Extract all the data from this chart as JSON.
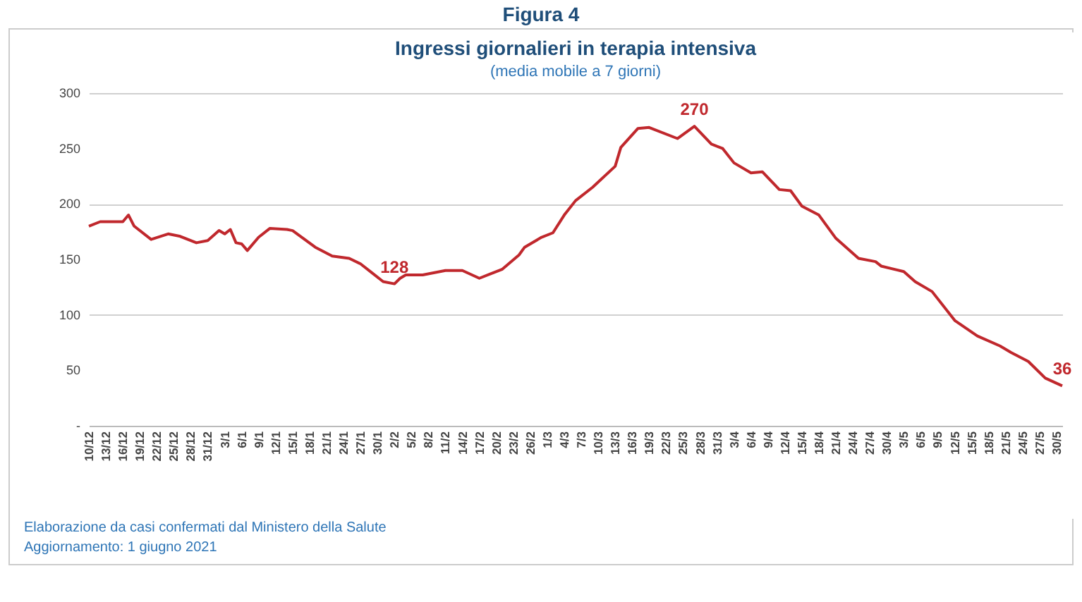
{
  "chart_data": {
    "type": "line",
    "title": "Ingressi giornalieri in terapia intensiva",
    "subtitle": "(media mobile a 7 giorni)",
    "annotations": [
      "Figura 4",
      "Elaborazione da casi confermati dal Ministero della Salute",
      "Aggiornamento: 1 giugno 2021"
    ],
    "x": [
      "2020-12-10",
      "2020-12-12",
      "2020-12-16",
      "2020-12-17",
      "2020-12-18",
      "2020-12-21",
      "2020-12-24",
      "2020-12-26",
      "2020-12-29",
      "2020-12-31",
      "2021-01-02",
      "2021-01-03",
      "2021-01-04",
      "2021-01-05",
      "2021-01-06",
      "2021-01-07",
      "2021-01-09",
      "2021-01-11",
      "2021-01-14",
      "2021-01-15",
      "2021-01-19",
      "2021-01-22",
      "2021-01-25",
      "2021-01-27",
      "2021-01-29",
      "2021-01-31",
      "2021-02-02",
      "2021-02-03",
      "2021-02-04",
      "2021-02-07",
      "2021-02-11",
      "2021-02-14",
      "2021-02-17",
      "2021-02-19",
      "2021-02-21",
      "2021-02-24",
      "2021-02-25",
      "2021-02-28",
      "2021-03-02",
      "2021-03-04",
      "2021-03-06",
      "2021-03-09",
      "2021-03-13",
      "2021-03-14",
      "2021-03-17",
      "2021-03-19",
      "2021-03-24",
      "2021-03-27",
      "2021-03-30",
      "2021-04-01",
      "2021-04-03",
      "2021-04-06",
      "2021-04-08",
      "2021-04-11",
      "2021-04-13",
      "2021-04-15",
      "2021-04-18",
      "2021-04-21",
      "2021-04-25",
      "2021-04-28",
      "2021-04-29",
      "2021-05-03",
      "2021-05-05",
      "2021-05-08",
      "2021-05-12",
      "2021-05-16",
      "2021-05-20",
      "2021-05-22",
      "2021-05-25",
      "2021-05-28",
      "2021-05-31"
    ],
    "series": [
      {
        "color": "#c0282d",
        "values": [
          180,
          184,
          184,
          190,
          180,
          168,
          173,
          171,
          165,
          167,
          176,
          173,
          177,
          165,
          164,
          158,
          170,
          178,
          177,
          176,
          161,
          153,
          151,
          146,
          138,
          130,
          128,
          133,
          136,
          136,
          140,
          140,
          133,
          137,
          141,
          154,
          161,
          170,
          174,
          190,
          203,
          215,
          234,
          251,
          268,
          269,
          259,
          270,
          254,
          250,
          237,
          228,
          229,
          213,
          212,
          198,
          190,
          169,
          151,
          148,
          144,
          139,
          130,
          121,
          95,
          81,
          72,
          66,
          58,
          43,
          36
        ],
        "value_labels": [
          null,
          null,
          null,
          null,
          null,
          null,
          null,
          null,
          null,
          null,
          null,
          null,
          null,
          null,
          null,
          null,
          null,
          null,
          null,
          null,
          null,
          null,
          null,
          null,
          null,
          null,
          "128",
          null,
          null,
          null,
          null,
          null,
          null,
          null,
          null,
          null,
          null,
          null,
          null,
          null,
          null,
          null,
          null,
          null,
          null,
          null,
          null,
          "270",
          null,
          null,
          null,
          null,
          null,
          null,
          null,
          null,
          null,
          null,
          null,
          null,
          null,
          null,
          null,
          null,
          null,
          null,
          null,
          null,
          null,
          null,
          "36"
        ]
      }
    ],
    "xlim": [
      "2020-12-10",
      "2021-05-31"
    ],
    "xticks": [
      {
        "value": "2020-12-10",
        "label": "10/12"
      },
      {
        "value": "2020-12-13",
        "label": "13/12"
      },
      {
        "value": "2020-12-16",
        "label": "16/12"
      },
      {
        "value": "2020-12-19",
        "label": "19/12"
      },
      {
        "value": "2020-12-22",
        "label": "22/12"
      },
      {
        "value": "2020-12-25",
        "label": "25/12"
      },
      {
        "value": "2020-12-28",
        "label": "28/12"
      },
      {
        "value": "2020-12-31",
        "label": "31/12"
      },
      {
        "value": "2021-01-03",
        "label": "3/1"
      },
      {
        "value": "2021-01-06",
        "label": "6/1"
      },
      {
        "value": "2021-01-09",
        "label": "9/1"
      },
      {
        "value": "2021-01-12",
        "label": "12/1"
      },
      {
        "value": "2021-01-15",
        "label": "15/1"
      },
      {
        "value": "2021-01-18",
        "label": "18/1"
      },
      {
        "value": "2021-01-21",
        "label": "21/1"
      },
      {
        "value": "2021-01-24",
        "label": "24/1"
      },
      {
        "value": "2021-01-27",
        "label": "27/1"
      },
      {
        "value": "2021-01-30",
        "label": "30/1"
      },
      {
        "value": "2021-02-02",
        "label": "2/2"
      },
      {
        "value": "2021-02-05",
        "label": "5/2"
      },
      {
        "value": "2021-02-08",
        "label": "8/2"
      },
      {
        "value": "2021-02-11",
        "label": "11/2"
      },
      {
        "value": "2021-02-14",
        "label": "14/2"
      },
      {
        "value": "2021-02-17",
        "label": "17/2"
      },
      {
        "value": "2021-02-20",
        "label": "20/2"
      },
      {
        "value": "2021-02-23",
        "label": "23/2"
      },
      {
        "value": "2021-02-26",
        "label": "26/2"
      },
      {
        "value": "2021-03-01",
        "label": "1/3"
      },
      {
        "value": "2021-03-04",
        "label": "4/3"
      },
      {
        "value": "2021-03-07",
        "label": "7/3"
      },
      {
        "value": "2021-03-10",
        "label": "10/3"
      },
      {
        "value": "2021-03-13",
        "label": "13/3"
      },
      {
        "value": "2021-03-16",
        "label": "16/3"
      },
      {
        "value": "2021-03-19",
        "label": "19/3"
      },
      {
        "value": "2021-03-22",
        "label": "22/3"
      },
      {
        "value": "2021-03-25",
        "label": "25/3"
      },
      {
        "value": "2021-03-28",
        "label": "28/3"
      },
      {
        "value": "2021-03-31",
        "label": "31/3"
      },
      {
        "value": "2021-04-03",
        "label": "3/4"
      },
      {
        "value": "2021-04-06",
        "label": "6/4"
      },
      {
        "value": "2021-04-09",
        "label": "9/4"
      },
      {
        "value": "2021-04-12",
        "label": "12/4"
      },
      {
        "value": "2021-04-15",
        "label": "15/4"
      },
      {
        "value": "2021-04-18",
        "label": "18/4"
      },
      {
        "value": "2021-04-21",
        "label": "21/4"
      },
      {
        "value": "2021-04-24",
        "label": "24/4"
      },
      {
        "value": "2021-04-27",
        "label": "27/4"
      },
      {
        "value": "2021-04-30",
        "label": "30/4"
      },
      {
        "value": "2021-05-03",
        "label": "3/5"
      },
      {
        "value": "2021-05-06",
        "label": "6/5"
      },
      {
        "value": "2021-05-09",
        "label": "9/5"
      },
      {
        "value": "2021-05-12",
        "label": "12/5"
      },
      {
        "value": "2021-05-15",
        "label": "15/5"
      },
      {
        "value": "2021-05-18",
        "label": "18/5"
      },
      {
        "value": "2021-05-21",
        "label": "21/5"
      },
      {
        "value": "2021-05-24",
        "label": "24/5"
      },
      {
        "value": "2021-05-27",
        "label": "27/5"
      },
      {
        "value": "2021-05-30",
        "label": "30/5"
      }
    ],
    "ylim": [
      0,
      300
    ],
    "yticks": [
      {
        "value": 0,
        "label": "-"
      },
      50,
      100,
      150,
      200,
      250,
      300
    ],
    "grid": "y"
  }
}
